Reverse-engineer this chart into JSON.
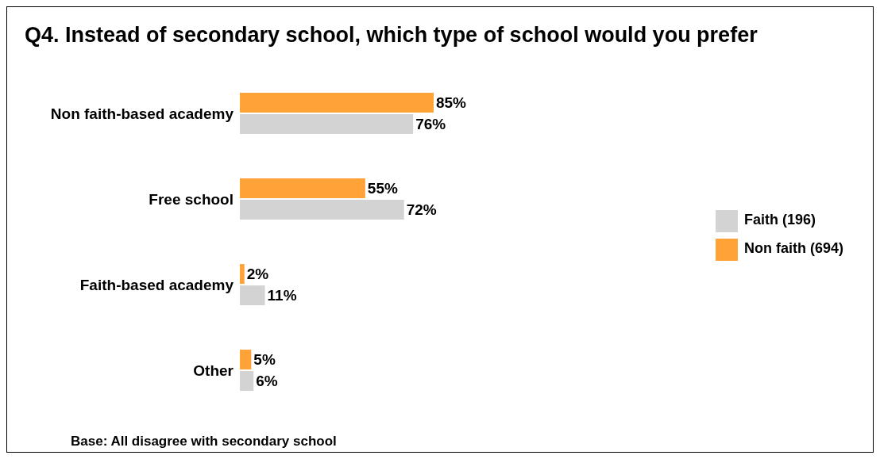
{
  "chart_data": {
    "type": "bar",
    "orientation": "horizontal",
    "title": "Q4. Instead of secondary school, which type of school would you prefer",
    "categories": [
      "Non faith-based academy",
      "Free school",
      "Faith-based academy",
      "Other"
    ],
    "series": [
      {
        "name": "Non faith  (694)",
        "color": "#ffa238",
        "values": [
          85,
          55,
          2,
          5
        ],
        "value_labels": [
          "85%",
          "55%",
          "2%",
          "5%"
        ]
      },
      {
        "name": "Faith  (196)",
        "color": "#d3d3d3",
        "values": [
          76,
          72,
          11,
          6
        ],
        "value_labels": [
          "76%",
          "72%",
          "11%",
          "6%"
        ]
      }
    ],
    "legend": "right",
    "grid": false,
    "annotations": [
      "Base: All disagree with secondary school"
    ]
  }
}
